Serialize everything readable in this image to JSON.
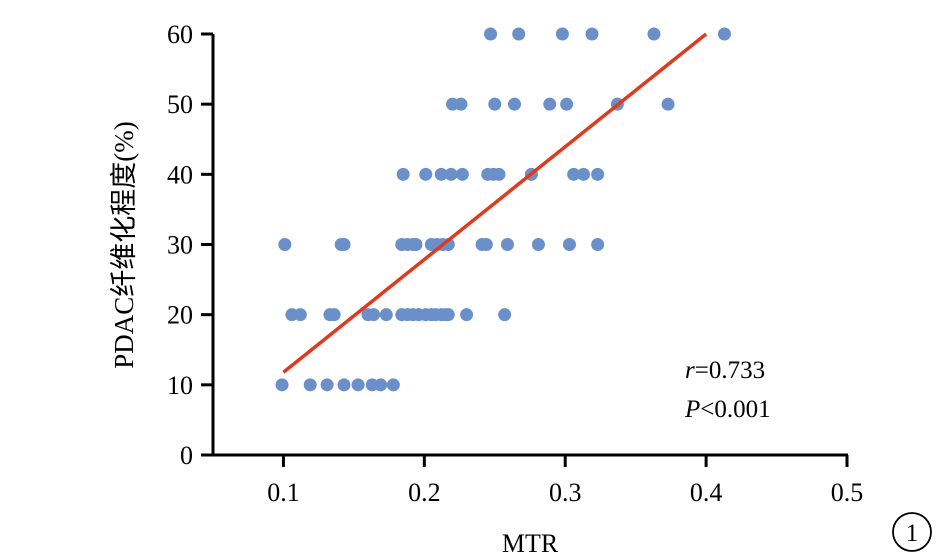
{
  "chart_data": {
    "type": "scatter",
    "title": "",
    "xlabel": "MTR",
    "ylabel": "PDAC纤维化程度(%)",
    "xlim": [
      0.05,
      0.5
    ],
    "ylim": [
      0,
      60
    ],
    "xticks": [
      "0.1",
      "0.2",
      "0.3",
      "0.4",
      "0.5"
    ],
    "xtick_values": [
      0.1,
      0.2,
      0.3,
      0.4,
      0.5
    ],
    "yticks": [
      "0",
      "10",
      "20",
      "30",
      "40",
      "50",
      "60"
    ],
    "ytick_values": [
      0,
      10,
      20,
      30,
      40,
      50,
      60
    ],
    "grid": false,
    "point_color": "#6b8fc9",
    "line_color": "#e03a1e",
    "points": [
      {
        "y": 60,
        "x": [
          0.247,
          0.267,
          0.298,
          0.319,
          0.363,
          0.413
        ]
      },
      {
        "y": 50,
        "x": [
          0.22,
          0.226,
          0.25,
          0.264,
          0.289,
          0.301,
          0.337,
          0.373
        ]
      },
      {
        "y": 40,
        "x": [
          0.185,
          0.201,
          0.212,
          0.219,
          0.227,
          0.245,
          0.249,
          0.253,
          0.276,
          0.306,
          0.313,
          0.323
        ]
      },
      {
        "y": 30,
        "x": [
          0.101,
          0.141,
          0.143,
          0.184,
          0.188,
          0.192,
          0.194,
          0.205,
          0.209,
          0.213,
          0.217,
          0.241,
          0.244,
          0.259,
          0.281,
          0.303,
          0.323
        ]
      },
      {
        "y": 20,
        "x": [
          0.106,
          0.112,
          0.133,
          0.136,
          0.16,
          0.164,
          0.173,
          0.184,
          0.188,
          0.192,
          0.196,
          0.201,
          0.205,
          0.208,
          0.212,
          0.215,
          0.217,
          0.23,
          0.257
        ]
      },
      {
        "y": 10,
        "x": [
          0.099,
          0.119,
          0.131,
          0.143,
          0.153,
          0.163,
          0.169,
          0.178
        ]
      }
    ],
    "fit_line": {
      "x": [
        0.1,
        0.4
      ],
      "y": [
        11.8,
        60
      ]
    },
    "annotations": {
      "r_label": "r",
      "r_value": "=0.733",
      "p_label": "P",
      "p_value": "<0.001"
    },
    "figure_number": "1"
  }
}
